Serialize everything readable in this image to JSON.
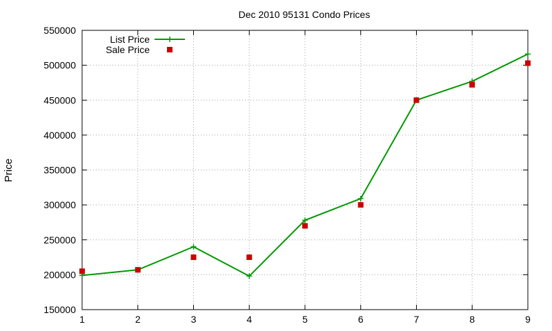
{
  "chart_data": {
    "type": "line",
    "title": "Dec 2010 95131 Condo Prices",
    "xlabel": "",
    "ylabel": "Price",
    "x": [
      1,
      2,
      3,
      4,
      5,
      6,
      7,
      8,
      9
    ],
    "xlim": [
      1,
      9
    ],
    "ylim": [
      150000,
      550000
    ],
    "x_ticks": [
      1,
      2,
      3,
      4,
      5,
      6,
      7,
      8,
      9
    ],
    "y_ticks": [
      150000,
      200000,
      250000,
      300000,
      350000,
      400000,
      450000,
      500000,
      550000
    ],
    "grid": true,
    "legend_position": "top-left",
    "series": [
      {
        "name": "List Price",
        "style": "line-with-plus-markers",
        "color": "#009900",
        "values": [
          199000,
          207000,
          240000,
          198000,
          278000,
          309000,
          450000,
          477000,
          516000
        ]
      },
      {
        "name": "Sale Price",
        "style": "square-markers",
        "color": "#cc0000",
        "values": [
          205000,
          207000,
          225000,
          225000,
          270000,
          300000,
          450000,
          472000,
          503000
        ]
      }
    ]
  }
}
